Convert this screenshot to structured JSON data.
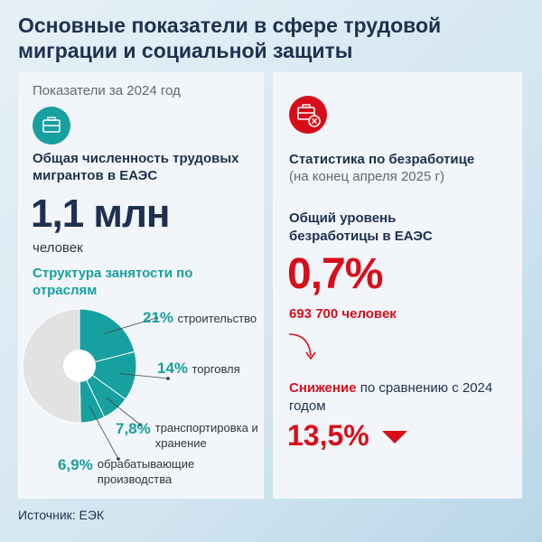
{
  "title": "Основные показатели в сфере трудовой миграции и социальной защиты",
  "left": {
    "period": "Показатели за 2024 год",
    "icon": "briefcase-icon",
    "heading": "Общая численность трудовых мигрантов в ЕАЭС",
    "value": "1,1 млн",
    "unit": "человек",
    "structure_title": "Структура занятости по отраслям"
  },
  "right": {
    "icon": "briefcase-cross-icon",
    "heading": "Статистика по безработице",
    "subheading": "(на конец апреля 2025 г)",
    "rate_label": "Общий уровень безработицы в ЕАЭС",
    "rate": "0,7%",
    "people": "693 700 человек",
    "decrease_bold": "Снижение",
    "decrease_text": " по сравнению с 2024 годом",
    "decrease_value": "13,5%",
    "arrow_icon": "triangle-down-icon"
  },
  "source": "Источник: ЕЭК",
  "colors": {
    "teal": "#16a09f",
    "red": "#d90d1a",
    "navy": "#1d3050",
    "rest": "#e2e2e2"
  },
  "chart_data": {
    "type": "pie",
    "title": "Структура занятости по отраслям",
    "slices": [
      {
        "label": "строительство",
        "value": 21,
        "display": "21%"
      },
      {
        "label": "торговля",
        "value": 14,
        "display": "14%"
      },
      {
        "label": "транспортировка и хранение",
        "value": 7.8,
        "display": "7,8%"
      },
      {
        "label": "обрабатывающие производства",
        "value": 6.9,
        "display": "6,9%"
      }
    ],
    "remainder_color": "#e2e2e2"
  }
}
